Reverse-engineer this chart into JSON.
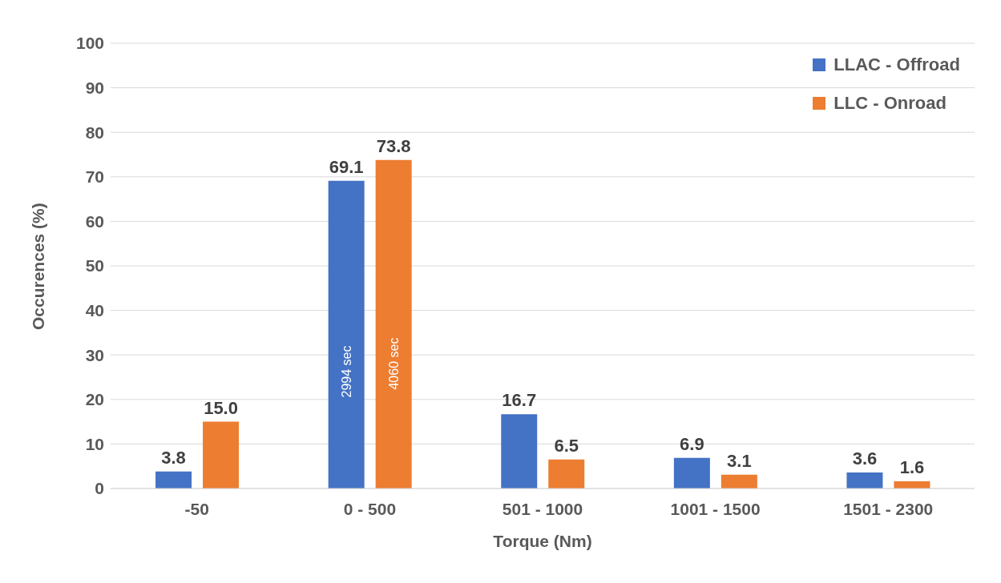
{
  "chart_data": {
    "type": "bar",
    "xlabel": "Torque (Nm)",
    "ylabel": "Occurences (%)",
    "categories": [
      "-50",
      "0 - 500",
      "501 - 1000",
      "1001 - 1500",
      "1501 - 2300"
    ],
    "series": [
      {
        "name": "LLAC - Offroad",
        "color": "#4472c4",
        "values": [
          3.8,
          69.1,
          16.7,
          6.9,
          3.6
        ],
        "value_labels": [
          "3.8",
          "69.1",
          "16.7",
          "6.9",
          "3.6"
        ]
      },
      {
        "name": "LLC - Onroad",
        "color": "#ed7d31",
        "values": [
          15.0,
          73.8,
          6.5,
          3.1,
          1.6
        ],
        "value_labels": [
          "15.0",
          "73.8",
          "6.5",
          "3.1",
          "1.6"
        ]
      }
    ],
    "annotations": [
      "2994 sec",
      "4060 sec"
    ],
    "ylim": [
      0,
      100
    ],
    "yticks": [
      0,
      10,
      20,
      30,
      40,
      50,
      60,
      70,
      80,
      90,
      100
    ],
    "grid": "y",
    "legend": "top right"
  }
}
